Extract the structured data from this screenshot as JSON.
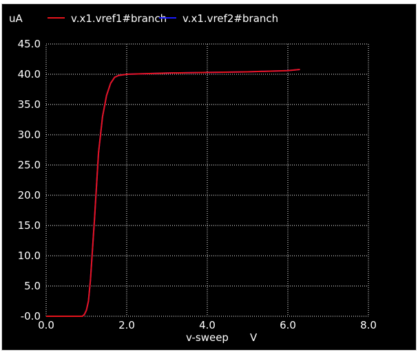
{
  "colors": {
    "background": "#000000",
    "foreground": "#ffffff",
    "grid": "#ffffff",
    "series1": "#e8141c",
    "series2": "#1a1aff"
  },
  "chart_data": {
    "type": "line",
    "ylabel": "uA",
    "xlabel": "v-sweep",
    "xunit": "V",
    "xlim": [
      0,
      8
    ],
    "ylim": [
      0,
      45
    ],
    "x_ticks": [
      "0.0",
      "2.0",
      "4.0",
      "6.0",
      "8.0"
    ],
    "y_ticks": [
      "-0.0",
      "5.0",
      "10.0",
      "15.0",
      "20.0",
      "25.0",
      "30.0",
      "35.0",
      "40.0",
      "45.0"
    ],
    "grid": true,
    "legend_position": "top",
    "series": [
      {
        "name": "v.x1.vref1#branch",
        "color": "#e8141c",
        "x": [
          0.0,
          0.5,
          0.9,
          0.95,
          1.0,
          1.05,
          1.1,
          1.2,
          1.3,
          1.4,
          1.5,
          1.6,
          1.7,
          1.8,
          1.9,
          2.0,
          2.5,
          3.0,
          4.0,
          5.0,
          5.5,
          6.0,
          6.3
        ],
        "y": [
          0.0,
          0.0,
          0.0,
          0.3,
          1.0,
          2.5,
          6.0,
          16.0,
          27.0,
          33.0,
          36.5,
          38.5,
          39.5,
          39.8,
          39.9,
          40.0,
          40.1,
          40.2,
          40.3,
          40.4,
          40.5,
          40.6,
          40.8
        ]
      },
      {
        "name": "v.x1.vref2#branch",
        "color": "#1a1aff",
        "x": [
          0.0,
          0.5,
          0.9,
          0.95,
          1.0,
          1.05,
          1.1,
          1.2,
          1.3,
          1.4,
          1.5,
          1.6,
          1.7,
          1.8,
          1.9,
          2.0,
          2.5,
          3.0,
          4.0,
          5.0,
          5.5,
          6.0,
          6.3
        ],
        "y": [
          0.0,
          0.0,
          0.0,
          0.3,
          1.0,
          2.5,
          6.0,
          16.0,
          27.0,
          33.0,
          36.5,
          38.5,
          39.5,
          39.8,
          39.9,
          40.0,
          40.1,
          40.2,
          40.3,
          40.4,
          40.5,
          40.6,
          40.8
        ]
      }
    ]
  }
}
